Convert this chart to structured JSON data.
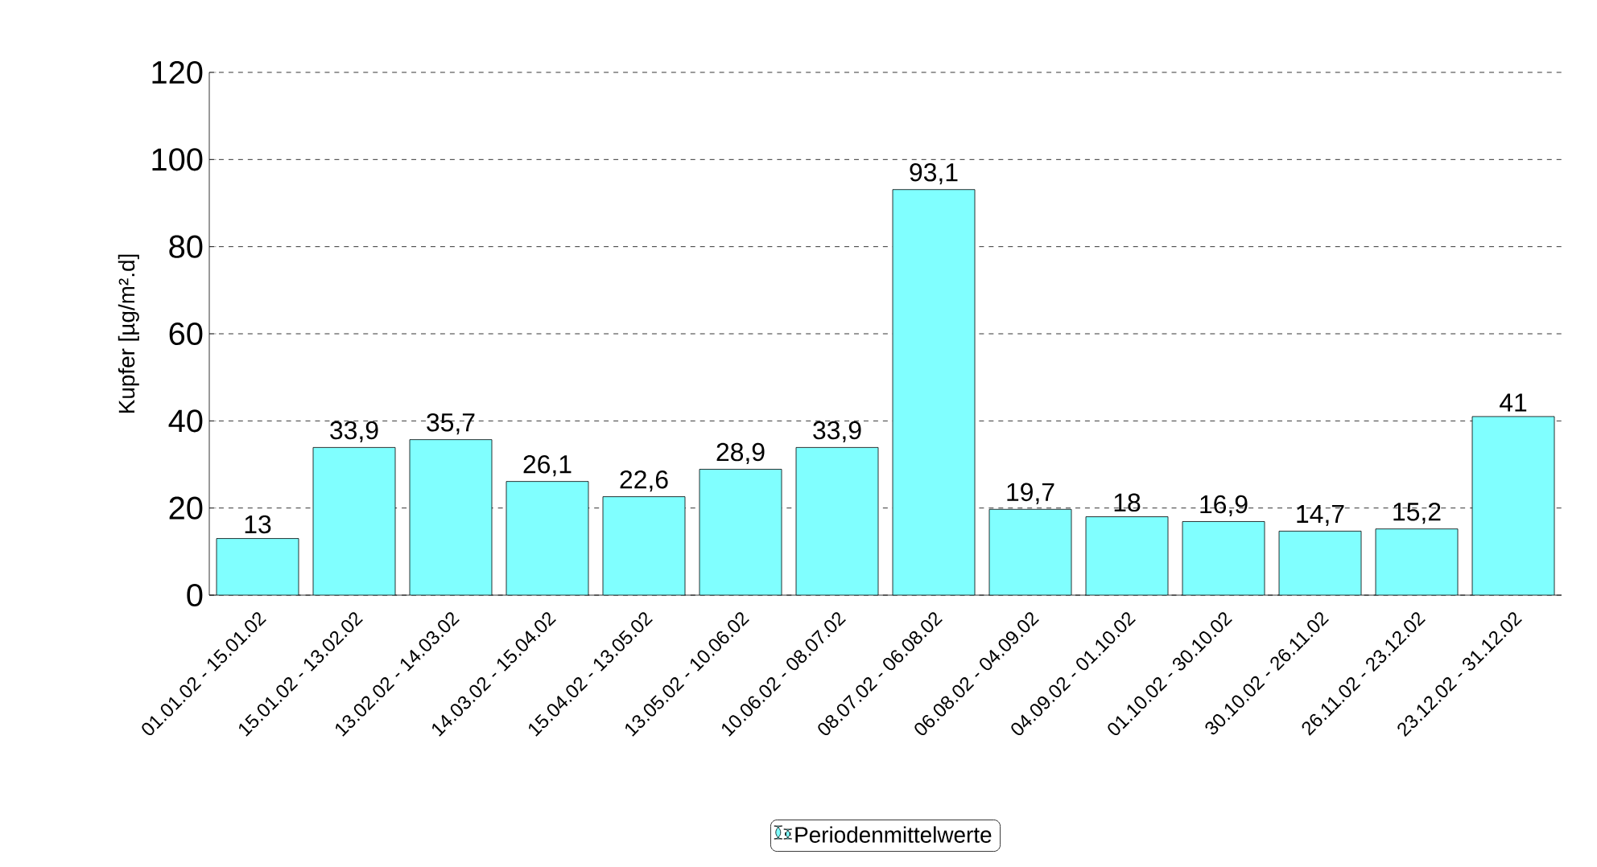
{
  "chart_data": {
    "type": "bar",
    "ylabel": "Kupfer [µg/m².d]",
    "categories": [
      "01.01.02 - 15.01.02",
      "15.01.02 - 13.02.02",
      "13.02.02 - 14.03.02",
      "14.03.02 - 15.04.02",
      "15.04.02 - 13.05.02",
      "13.05.02 - 10.06.02",
      "10.06.02 - 08.07.02",
      "08.07.02 - 06.08.02",
      "06.08.02 - 04.09.02",
      "04.09.02 - 01.10.02",
      "01.10.02 - 30.10.02",
      "30.10.02 - 26.11.02",
      "26.11.02 - 23.12.02",
      "23.12.02 - 31.12.02"
    ],
    "series": [
      {
        "name": "Periodenmittelwerte",
        "color": "#80ffff",
        "values": [
          13,
          33.9,
          35.7,
          26.1,
          22.6,
          28.9,
          33.9,
          93.1,
          19.7,
          18,
          16.9,
          14.7,
          15.2,
          41
        ],
        "value_labels": [
          "13",
          "33,9",
          "35,7",
          "26,1",
          "22,6",
          "28,9",
          "33,9",
          "93,1",
          "19,7",
          "18",
          "16,9",
          "14,7",
          "15,2",
          "41"
        ]
      }
    ],
    "ylim": [
      0,
      120
    ],
    "yticks": [
      0,
      20,
      40,
      60,
      80,
      100,
      120
    ],
    "grid": "y",
    "legend": "bottom"
  }
}
